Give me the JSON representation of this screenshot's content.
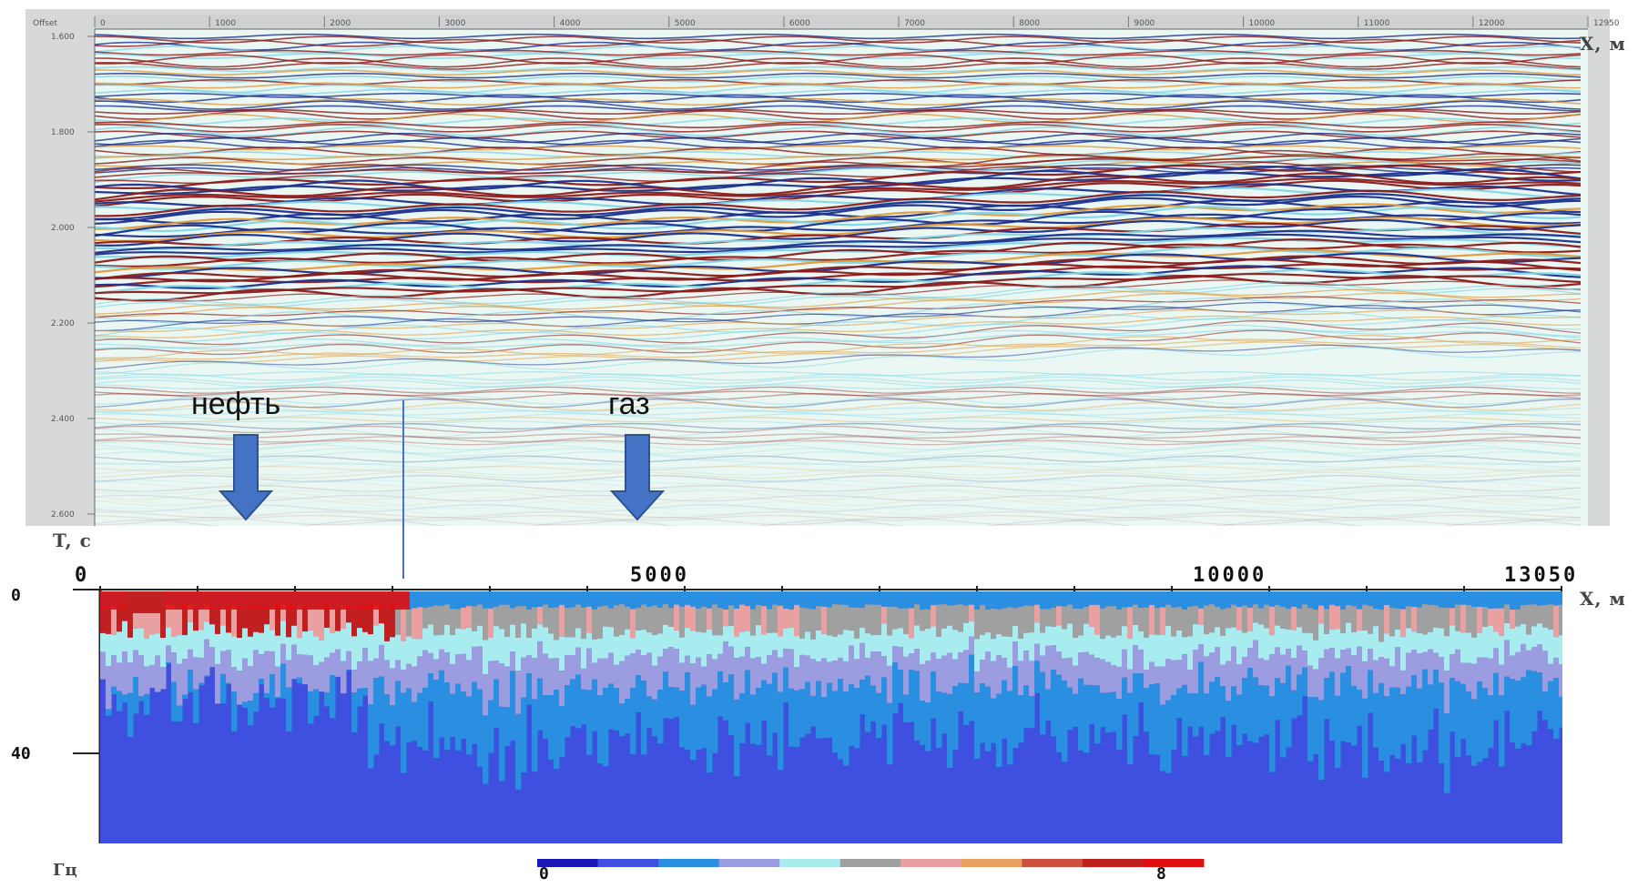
{
  "seismic": {
    "x_axis_label": "X, м",
    "t_axis_label": "T, с",
    "corner_label": "Offset",
    "x_ticks": [
      "0",
      "1000",
      "2000",
      "3000",
      "4000",
      "5000",
      "6000",
      "7000",
      "8000",
      "9000",
      "10000",
      "11000",
      "12000",
      "12950"
    ],
    "t_ticks": [
      "1.600",
      "1.800",
      "2.000",
      "2.200",
      "2.400",
      "2.600"
    ],
    "colors": {
      "red": "#8b1a1a",
      "blue": "#1c2f8c",
      "cyan": "#7fd6e8",
      "orange": "#e09a3c",
      "pale": "#cfeee8"
    }
  },
  "annotations": {
    "oil_label": "нефть",
    "gas_label": "газ",
    "arrow_color": "#4472c4",
    "arrow_stroke": "#2f528f"
  },
  "spectral": {
    "x_axis_label": "X, м",
    "y_axis_label": "Гц",
    "x_ticks": [
      "0",
      "5000",
      "10000",
      "13050"
    ],
    "y_ticks": [
      "0",
      "40"
    ],
    "colorbar_min": "0",
    "colorbar_max": "8",
    "palette": [
      "#1a1ab8",
      "#3f4fe0",
      "#2a8fe0",
      "#9c9ce0",
      "#a8ecf0",
      "#a0a0a0",
      "#e8a0a0",
      "#e8a060",
      "#d05040",
      "#c02020",
      "#e01010"
    ]
  }
}
